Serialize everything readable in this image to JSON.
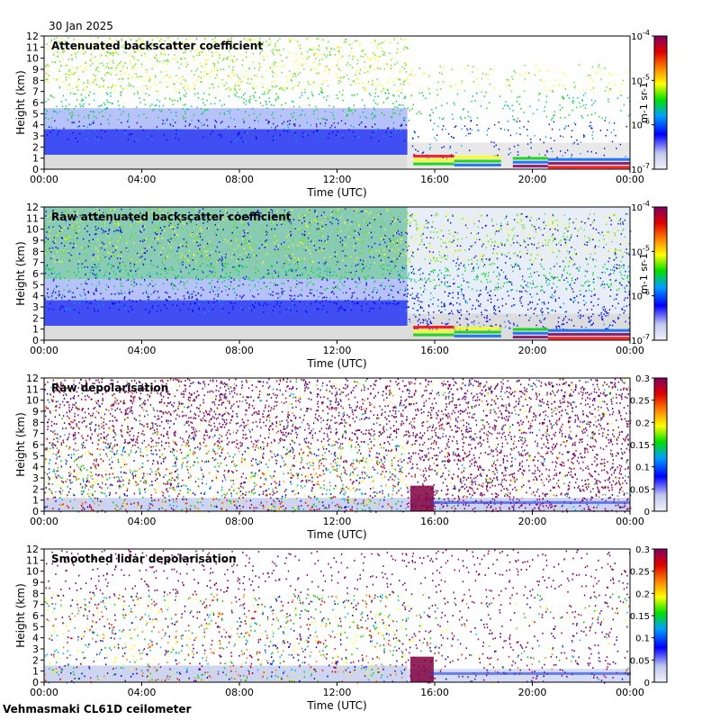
{
  "date": "30 Jan 2025",
  "footer": "Vehmasmaki CL61D ceilometer",
  "chart_data": [
    {
      "type": "heatmap",
      "title": "Attenuated backscatter coefficient",
      "xlabel": "Time (UTC)",
      "ylabel": "Height (km)",
      "xticks": [
        "00:00",
        "04:00",
        "08:00",
        "12:00",
        "16:00",
        "20:00",
        "00:00"
      ],
      "yticks": [
        "0",
        "1",
        "2",
        "3",
        "4",
        "5",
        "6",
        "7",
        "8",
        "9",
        "10",
        "11",
        "12"
      ],
      "ylim": [
        0,
        12
      ],
      "colorbar": {
        "scale": "log",
        "ticks": [
          "10",
          "10",
          "10",
          "10"
        ],
        "exponents": [
          "-7",
          "-6",
          "-5",
          "-4"
        ],
        "unit": "m-1 sr-1"
      }
    },
    {
      "type": "heatmap",
      "title": "Raw attenuated backscatter coefficient",
      "xlabel": "Time (UTC)",
      "ylabel": "Height (km)",
      "xticks": [
        "00:00",
        "04:00",
        "08:00",
        "12:00",
        "16:00",
        "20:00",
        "00:00"
      ],
      "yticks": [
        "0",
        "1",
        "2",
        "3",
        "4",
        "5",
        "6",
        "7",
        "8",
        "9",
        "10",
        "11",
        "12"
      ],
      "ylim": [
        0,
        12
      ],
      "colorbar": {
        "scale": "log",
        "ticks": [
          "10",
          "10",
          "10",
          "10"
        ],
        "exponents": [
          "-7",
          "-6",
          "-5",
          "-4"
        ],
        "unit": "m-1 sr-1"
      }
    },
    {
      "type": "heatmap",
      "title": "Raw depolarisation",
      "xlabel": "Time (UTC)",
      "ylabel": "Height (km)",
      "xticks": [
        "00:00",
        "04:00",
        "08:00",
        "12:00",
        "16:00",
        "20:00",
        "00:00"
      ],
      "yticks": [
        "0",
        "1",
        "2",
        "3",
        "4",
        "5",
        "6",
        "7",
        "8",
        "9",
        "10",
        "11",
        "12"
      ],
      "ylim": [
        0,
        12
      ],
      "colorbar": {
        "scale": "linear",
        "ticks": [
          "0",
          "0.05",
          "0.1",
          "0.15",
          "0.2",
          "0.25",
          "0.3"
        ]
      }
    },
    {
      "type": "heatmap",
      "title": "Smoothed lidar depolarisation",
      "xlabel": "Time (UTC)",
      "ylabel": "Height (km)",
      "xticks": [
        "00:00",
        "04:00",
        "08:00",
        "12:00",
        "16:00",
        "20:00",
        "00:00"
      ],
      "yticks": [
        "0",
        "1",
        "2",
        "3",
        "4",
        "5",
        "6",
        "7",
        "8",
        "9",
        "10",
        "11",
        "12"
      ],
      "ylim": [
        0,
        12
      ],
      "colorbar": {
        "scale": "linear",
        "ticks": [
          "0",
          "0.05",
          "0.1",
          "0.15",
          "0.2",
          "0.25",
          "0.3"
        ]
      }
    }
  ]
}
